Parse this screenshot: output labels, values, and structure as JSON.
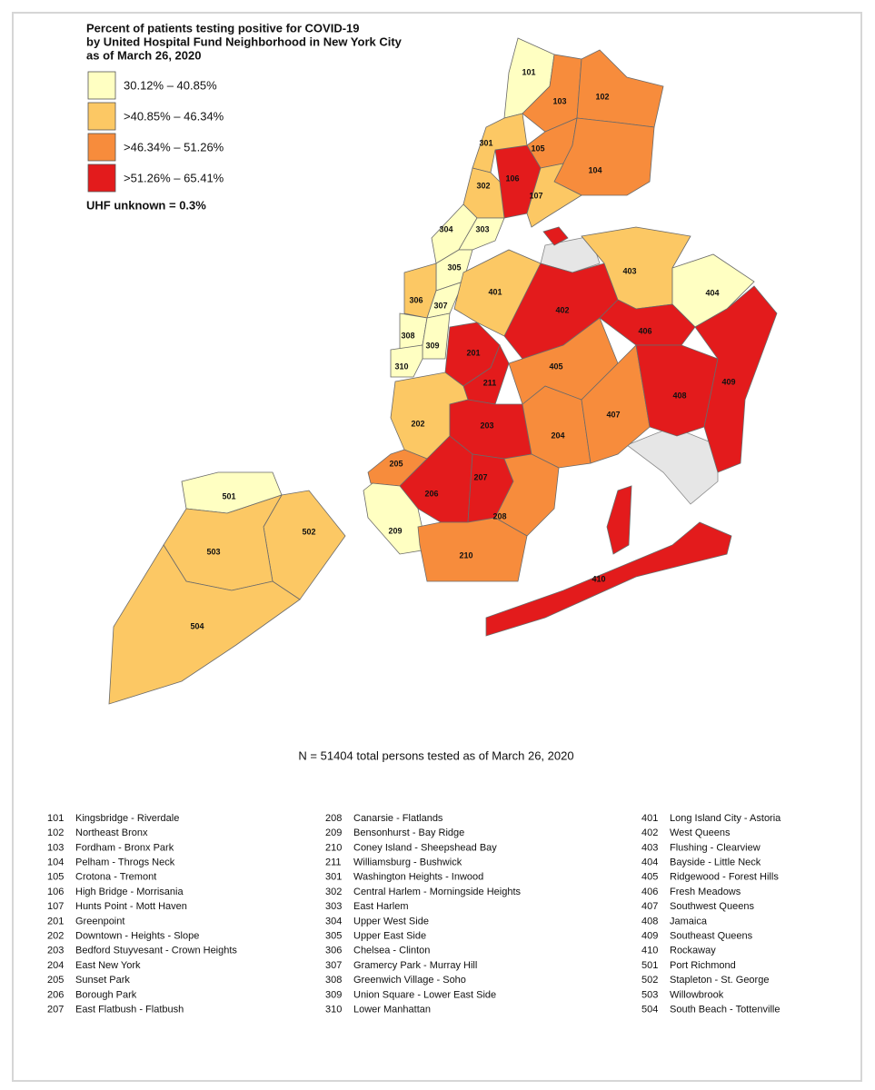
{
  "title": [
    "Percent of patients testing positive for COVID-19",
    "by United Hospital Fund Neighborhood in New York City",
    "as of March 26, 2020"
  ],
  "legend": [
    {
      "label": "30.12% – 40.85%",
      "color": "#ffffc2"
    },
    {
      "label": ">40.85% – 46.34%",
      "color": "#fcc864"
    },
    {
      "label": ">46.34% – 51.26%",
      "color": "#f78c3c"
    },
    {
      "label": ">51.26% – 65.41%",
      "color": "#e31b1c"
    }
  ],
  "unknown_note": "UHF unknown = 0.3%",
  "regions": [
    {
      "code": "101",
      "class": 0
    },
    {
      "code": "103",
      "class": 2
    },
    {
      "code": "102",
      "class": 2
    },
    {
      "code": "105",
      "class": 2
    },
    {
      "code": "104",
      "class": 2
    },
    {
      "code": "106",
      "class": 3
    },
    {
      "code": "107",
      "class": 1
    },
    {
      "code": "301",
      "class": 1
    },
    {
      "code": "302",
      "class": 1
    },
    {
      "code": "304",
      "class": 0
    },
    {
      "code": "303",
      "class": 0
    },
    {
      "code": "305",
      "class": 0
    },
    {
      "code": "306",
      "class": 1
    },
    {
      "code": "307",
      "class": 0
    },
    {
      "code": "308",
      "class": 0
    },
    {
      "code": "309",
      "class": 0
    },
    {
      "code": "310",
      "class": 0
    },
    {
      "code": "201",
      "class": 3
    },
    {
      "code": "211",
      "class": 3
    },
    {
      "code": "202",
      "class": 1
    },
    {
      "code": "203",
      "class": 3
    },
    {
      "code": "205",
      "class": 2
    },
    {
      "code": "206",
      "class": 3
    },
    {
      "code": "207",
      "class": 3
    },
    {
      "code": "204",
      "class": 2
    },
    {
      "code": "208",
      "class": 2
    },
    {
      "code": "209",
      "class": 0
    },
    {
      "code": "210",
      "class": 2
    },
    {
      "code": "401",
      "class": 1
    },
    {
      "code": "402",
      "class": 3
    },
    {
      "code": "403",
      "class": 1
    },
    {
      "code": "404",
      "class": 0
    },
    {
      "code": "406",
      "class": 3
    },
    {
      "code": "405",
      "class": 2
    },
    {
      "code": "407",
      "class": 2
    },
    {
      "code": "408",
      "class": 3
    },
    {
      "code": "409",
      "class": 3
    },
    {
      "code": "410",
      "class": 3
    },
    {
      "code": "501",
      "class": 0
    },
    {
      "code": "502",
      "class": 1
    },
    {
      "code": "503",
      "class": 1
    },
    {
      "code": "504",
      "class": 1
    }
  ],
  "note": "N = 51404 total persons tested as of March 26, 2020",
  "key": [
    {
      "code": "101",
      "name": "Kingsbridge - Riverdale"
    },
    {
      "code": "102",
      "name": "Northeast Bronx"
    },
    {
      "code": "103",
      "name": "Fordham - Bronx Park"
    },
    {
      "code": "104",
      "name": "Pelham - Throgs Neck"
    },
    {
      "code": "105",
      "name": "Crotona - Tremont"
    },
    {
      "code": "106",
      "name": "High Bridge - Morrisania"
    },
    {
      "code": "107",
      "name": "Hunts Point - Mott Haven"
    },
    {
      "code": "201",
      "name": "Greenpoint"
    },
    {
      "code": "202",
      "name": "Downtown - Heights - Slope"
    },
    {
      "code": "203",
      "name": "Bedford Stuyvesant - Crown Heights"
    },
    {
      "code": "204",
      "name": "East New York"
    },
    {
      "code": "205",
      "name": "Sunset Park"
    },
    {
      "code": "206",
      "name": "Borough Park"
    },
    {
      "code": "207",
      "name": "East Flatbush - Flatbush"
    },
    {
      "code": "208",
      "name": "Canarsie - Flatlands"
    },
    {
      "code": "209",
      "name": "Bensonhurst - Bay Ridge"
    },
    {
      "code": "210",
      "name": "Coney Island - Sheepshead Bay"
    },
    {
      "code": "211",
      "name": "Williamsburg - Bushwick"
    },
    {
      "code": "301",
      "name": "Washington Heights - Inwood"
    },
    {
      "code": "302",
      "name": "Central Harlem - Morningside Heights"
    },
    {
      "code": "303",
      "name": "East Harlem"
    },
    {
      "code": "304",
      "name": "Upper West Side"
    },
    {
      "code": "305",
      "name": "Upper East Side"
    },
    {
      "code": "306",
      "name": "Chelsea - Clinton"
    },
    {
      "code": "307",
      "name": "Gramercy Park - Murray Hill"
    },
    {
      "code": "308",
      "name": "Greenwich Village - Soho"
    },
    {
      "code": "309",
      "name": "Union Square - Lower East Side"
    },
    {
      "code": "310",
      "name": "Lower Manhattan"
    },
    {
      "code": "401",
      "name": "Long Island City - Astoria"
    },
    {
      "code": "402",
      "name": "West Queens"
    },
    {
      "code": "403",
      "name": "Flushing - Clearview"
    },
    {
      "code": "404",
      "name": "Bayside - Little Neck"
    },
    {
      "code": "405",
      "name": "Ridgewood - Forest Hills"
    },
    {
      "code": "406",
      "name": "Fresh Meadows"
    },
    {
      "code": "407",
      "name": "Southwest Queens"
    },
    {
      "code": "408",
      "name": "Jamaica"
    },
    {
      "code": "409",
      "name": "Southeast Queens"
    },
    {
      "code": "410",
      "name": "Rockaway"
    },
    {
      "code": "501",
      "name": "Port Richmond"
    },
    {
      "code": "502",
      "name": "Stapleton - St. George"
    },
    {
      "code": "503",
      "name": "Willowbrook"
    },
    {
      "code": "504",
      "name": "South Beach - Tottenville"
    }
  ]
}
